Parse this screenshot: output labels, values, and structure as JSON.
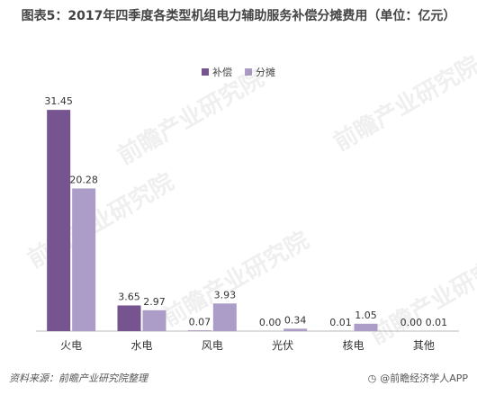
{
  "title": "图表5：2017年四季度各类型机组电力辅助服务补偿分摊费用（单位：亿元）",
  "colors": {
    "compensation": "#76548f",
    "allocation": "#ab9dc7"
  },
  "source": "资料来源：前瞻产业研究院整理",
  "brand": "@前瞻经济学人APP",
  "brand_icon": "clock-icon",
  "watermark": "前瞻产业研究院",
  "chart_data": {
    "type": "bar",
    "categories": [
      "火电",
      "水电",
      "风电",
      "光伏",
      "核电",
      "其他"
    ],
    "series": [
      {
        "name": "补偿",
        "values": [
          31.45,
          3.65,
          0.07,
          0.0,
          0.01,
          0.0
        ]
      },
      {
        "name": "分摊",
        "values": [
          20.28,
          2.97,
          3.93,
          0.34,
          1.05,
          0.01
        ]
      }
    ],
    "value_labels": [
      [
        "31.45",
        "3.65",
        "0.07",
        "0.00",
        "0.01",
        "0.00"
      ],
      [
        "20.28",
        "2.97",
        "3.93",
        "0.34",
        "1.05",
        "0.01"
      ]
    ],
    "ylim": [
      0,
      33
    ],
    "grid": false,
    "legend_position": "top-center"
  }
}
